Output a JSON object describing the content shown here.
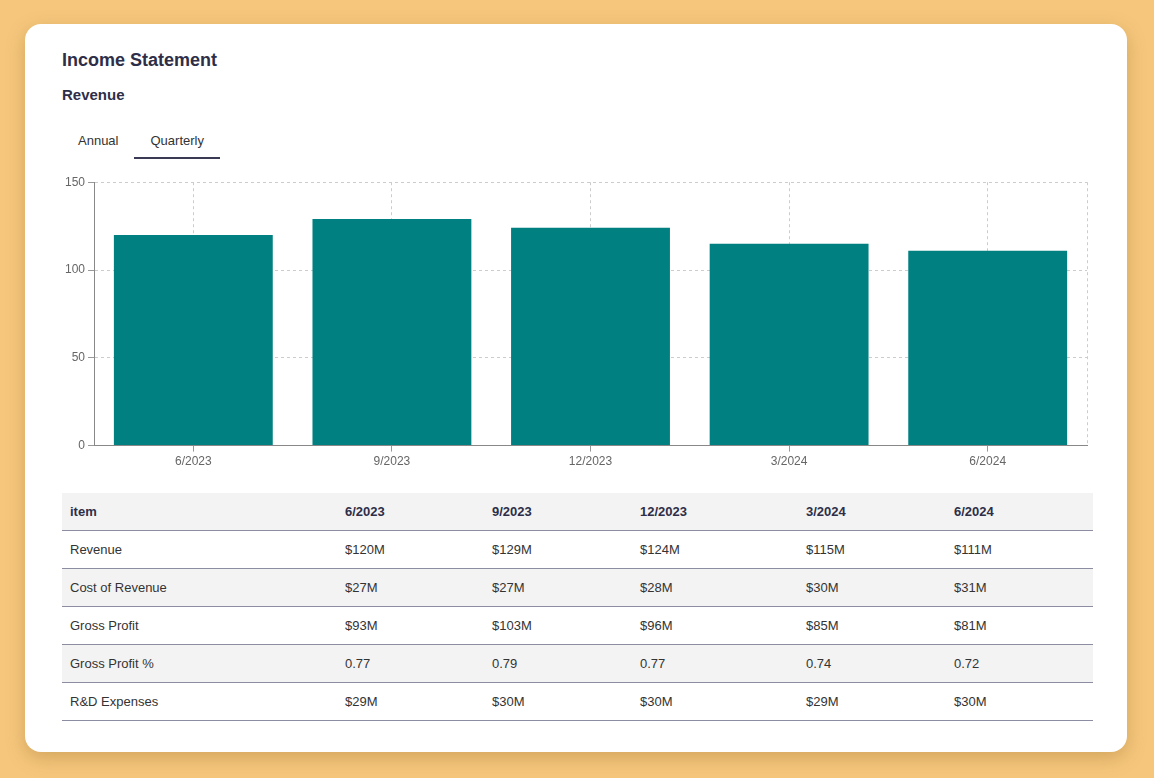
{
  "header": {
    "title": "Income Statement",
    "subtitle": "Revenue"
  },
  "tabs": {
    "items": [
      "Annual",
      "Quarterly"
    ],
    "active": "Quarterly"
  },
  "chart_data": {
    "type": "bar",
    "categories": [
      "6/2023",
      "9/2023",
      "12/2023",
      "3/2024",
      "6/2024"
    ],
    "values": [
      120,
      129,
      124,
      115,
      111
    ],
    "color": "#008080",
    "ylim": [
      0,
      150
    ],
    "yticks": [
      0,
      50,
      100,
      150
    ],
    "grid": true
  },
  "table": {
    "header": [
      "item",
      "6/2023",
      "9/2023",
      "12/2023",
      "3/2024",
      "6/2024"
    ],
    "rows": [
      [
        "Revenue",
        "$120M",
        "$129M",
        "$124M",
        "$115M",
        "$111M"
      ],
      [
        "Cost of Revenue",
        "$27M",
        "$27M",
        "$28M",
        "$30M",
        "$31M"
      ],
      [
        "Gross Profit",
        "$93M",
        "$103M",
        "$96M",
        "$85M",
        "$81M"
      ],
      [
        "Gross Profit %",
        "0.77",
        "0.79",
        "0.77",
        "0.74",
        "0.72"
      ],
      [
        "R&D Expenses",
        "$29M",
        "$30M",
        "$30M",
        "$29M",
        "$30M"
      ]
    ]
  }
}
